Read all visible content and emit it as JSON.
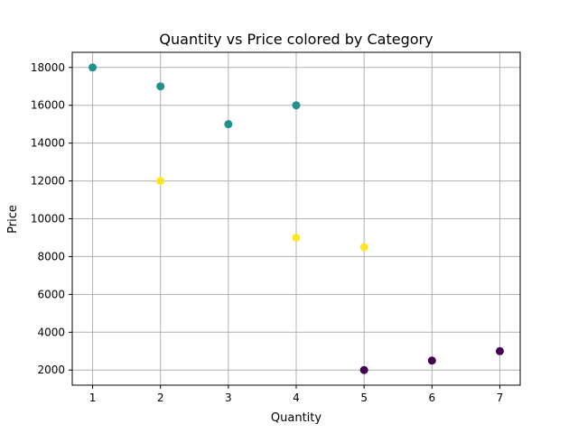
{
  "chart_data": {
    "type": "scatter",
    "title": "Quantity vs Price colored by Category",
    "xlabel": "Quantity",
    "ylabel": "Price",
    "xlim": [
      0.7,
      7.3
    ],
    "ylim": [
      1200,
      18800
    ],
    "xticks": [
      1,
      2,
      3,
      4,
      5,
      6,
      7
    ],
    "yticks": [
      2000,
      4000,
      6000,
      8000,
      10000,
      12000,
      14000,
      16000,
      18000
    ],
    "grid": true,
    "colormap": "viridis",
    "points": [
      {
        "x": 1,
        "y": 18000,
        "color": "#21918c"
      },
      {
        "x": 2,
        "y": 17000,
        "color": "#21918c"
      },
      {
        "x": 3,
        "y": 15000,
        "color": "#21918c"
      },
      {
        "x": 4,
        "y": 16000,
        "color": "#21918c"
      },
      {
        "x": 2,
        "y": 12000,
        "color": "#fde725"
      },
      {
        "x": 4,
        "y": 9000,
        "color": "#fde725"
      },
      {
        "x": 5,
        "y": 8500,
        "color": "#fde725"
      },
      {
        "x": 5,
        "y": 2000,
        "color": "#440154"
      },
      {
        "x": 6,
        "y": 2500,
        "color": "#440154"
      },
      {
        "x": 7,
        "y": 3000,
        "color": "#440154"
      }
    ]
  }
}
